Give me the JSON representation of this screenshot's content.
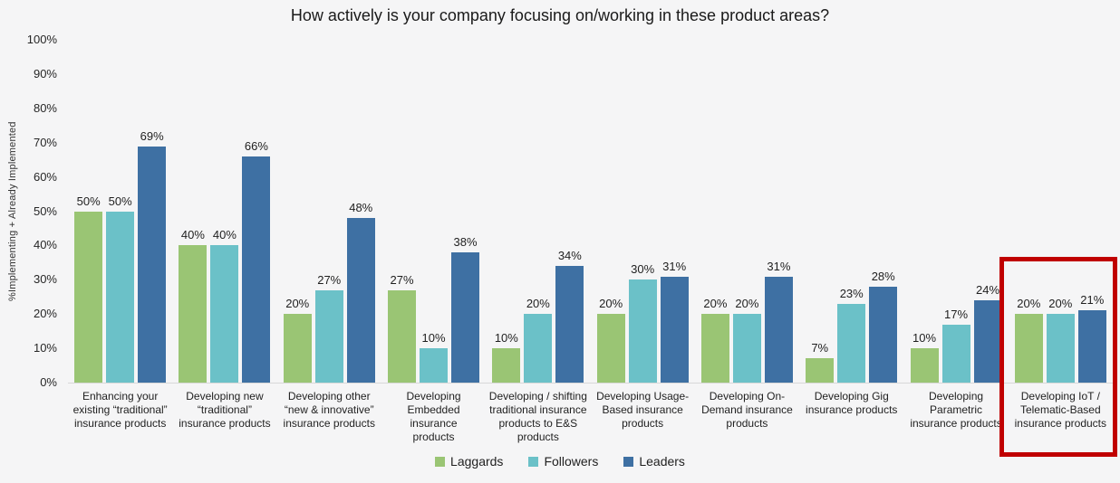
{
  "chart_data": {
    "type": "bar",
    "title": "How actively is your company focusing on/working in these product areas?",
    "xlabel": "",
    "ylabel": "%Implementing + Already Implemented",
    "ylim": [
      0,
      100
    ],
    "y_ticks": [
      "100%",
      "90%",
      "80%",
      "70%",
      "60%",
      "50%",
      "40%",
      "30%",
      "20%",
      "10%",
      "0%"
    ],
    "grid": "off",
    "legend_position": "bottom-center",
    "data_labels": "percent above each bar",
    "categories": [
      "Enhancing your\nexisting “traditional”\ninsurance products",
      "Developing new\n“traditional”\ninsurance products",
      "Developing other\n“new & innovative”\ninsurance products",
      "Developing\nEmbedded insurance\nproducts",
      "Developing / shifting\ntraditional insurance\nproducts to E&S\nproducts",
      "Developing Usage-\nBased insurance\nproducts",
      "Developing On-\nDemand insurance\nproducts",
      "Developing Gig\ninsurance products",
      "Developing\nParametric\ninsurance products",
      "Developing IoT /\nTelematic-Based\ninsurance products"
    ],
    "series": [
      {
        "name": "Laggards",
        "color": "#9ac574",
        "values": [
          50,
          40,
          20,
          27,
          10,
          20,
          20,
          7,
          10,
          20
        ]
      },
      {
        "name": "Followers",
        "color": "#6bc1c8",
        "values": [
          50,
          40,
          27,
          10,
          20,
          30,
          20,
          23,
          17,
          20
        ]
      },
      {
        "name": "Leaders",
        "color": "#3e70a3",
        "values": [
          69,
          66,
          48,
          38,
          34,
          31,
          31,
          28,
          24,
          21
        ]
      }
    ],
    "highlight": {
      "category_index": 9,
      "category_label": "Developing IoT / Telematic-Based insurance products",
      "box_color": "#c00000"
    }
  },
  "colors": {
    "background": "#f5f5f6",
    "axis_line": "#d8d8d8",
    "text": "#262626",
    "highlight_box": "#c00000"
  }
}
